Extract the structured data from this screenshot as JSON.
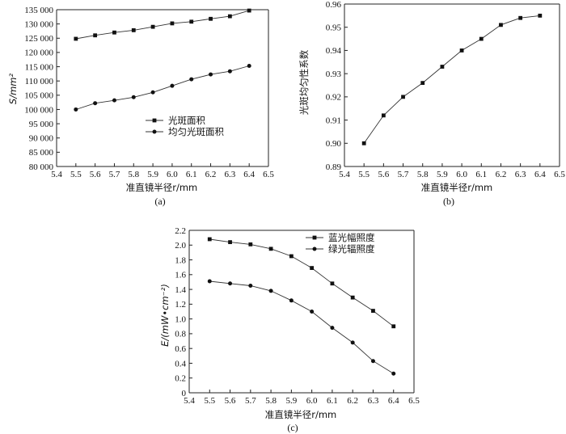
{
  "chart_data": [
    {
      "id": "a",
      "type": "line",
      "panel_label": "(a)",
      "xlabel": "准直镜半径r/mm",
      "ylabel": "S/mm²",
      "xlim": [
        5.4,
        6.5
      ],
      "ylim": [
        80000,
        135000
      ],
      "x_ticks": [
        "5.4",
        "5.5",
        "5.6",
        "5.7",
        "5.8",
        "5.9",
        "6.0",
        "6.1",
        "6.2",
        "6.3",
        "6.4",
        "6.5"
      ],
      "y_ticks": [
        "80 000",
        "85 000",
        "90 000",
        "95 000",
        "100 000",
        "105 000",
        "110 000",
        "115 000",
        "120 000",
        "125 000",
        "130 000",
        "135 000"
      ],
      "x": [
        5.5,
        5.6,
        5.7,
        5.8,
        5.9,
        6.0,
        6.1,
        6.2,
        6.3,
        6.4
      ],
      "legend_position": "center",
      "series": [
        {
          "name": "光斑面积",
          "marker": "square",
          "values": [
            124800,
            126000,
            127000,
            127800,
            129000,
            130200,
            130800,
            131800,
            132700,
            134700
          ]
        },
        {
          "name": "均匀光斑面积",
          "marker": "circle",
          "values": [
            100000,
            102200,
            103200,
            104300,
            106000,
            108300,
            110600,
            112300,
            113400,
            115300
          ]
        }
      ]
    },
    {
      "id": "b",
      "type": "line",
      "panel_label": "(b)",
      "xlabel": "准直镜半径r/mm",
      "ylabel": "光斑均匀性系数",
      "xlim": [
        5.4,
        6.5
      ],
      "ylim": [
        0.89,
        0.96
      ],
      "x_ticks": [
        "5.4",
        "5.5",
        "5.6",
        "5.7",
        "5.8",
        "5.9",
        "6.0",
        "6.1",
        "6.2",
        "6.3",
        "6.4",
        "6.5"
      ],
      "y_ticks": [
        "0.89",
        "0.90",
        "0.91",
        "0.92",
        "0.93",
        "0.94",
        "0.95",
        "0.96"
      ],
      "x": [
        5.5,
        5.6,
        5.7,
        5.8,
        5.9,
        6.0,
        6.1,
        6.2,
        6.3,
        6.4
      ],
      "series": [
        {
          "name": "",
          "marker": "square",
          "values": [
            0.9,
            0.912,
            0.92,
            0.926,
            0.933,
            0.94,
            0.945,
            0.951,
            0.954,
            0.955
          ]
        }
      ]
    },
    {
      "id": "c",
      "type": "line",
      "panel_label": "(c)",
      "xlabel": "准直镜半径r/mm",
      "ylabel": "E/(mW•cm⁻²)",
      "xlim": [
        5.4,
        6.5
      ],
      "ylim": [
        0,
        2.2
      ],
      "x_ticks": [
        "5.4",
        "5.5",
        "5.6",
        "5.7",
        "5.8",
        "5.9",
        "6.0",
        "6.1",
        "6.2",
        "6.3",
        "6.4",
        "6.5"
      ],
      "y_ticks": [
        "0",
        "0.2",
        "0.4",
        "0.6",
        "0.8",
        "1.0",
        "1.2",
        "1.4",
        "1.6",
        "1.8",
        "2.0",
        "2.2"
      ],
      "x": [
        5.5,
        5.6,
        5.7,
        5.8,
        5.9,
        6.0,
        6.1,
        6.2,
        6.3,
        6.4
      ],
      "legend_position": "top-right",
      "series": [
        {
          "name": "蓝光幅照度",
          "marker": "square",
          "values": [
            2.08,
            2.04,
            2.01,
            1.95,
            1.85,
            1.69,
            1.48,
            1.29,
            1.11,
            0.9
          ]
        },
        {
          "name": "绿光辐照度",
          "marker": "circle",
          "values": [
            1.51,
            1.48,
            1.45,
            1.38,
            1.25,
            1.1,
            0.88,
            0.68,
            0.43,
            0.26
          ]
        }
      ]
    }
  ]
}
